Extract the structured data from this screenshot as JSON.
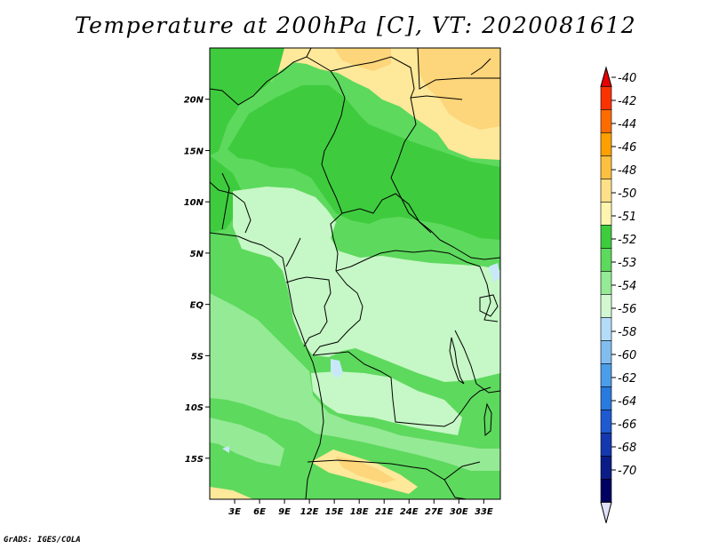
{
  "title": "Temperature at 200hPa [C], VT: 2020081612",
  "credit": "GrADS: IGES/COLA",
  "map": {
    "lon_range": [
      0,
      35
    ],
    "lat_range": [
      -19,
      25
    ],
    "x_ticks": [
      {
        "value": 3,
        "label": "3E"
      },
      {
        "value": 6,
        "label": "6E"
      },
      {
        "value": 9,
        "label": "9E"
      },
      {
        "value": 12,
        "label": "12E"
      },
      {
        "value": 15,
        "label": "15E"
      },
      {
        "value": 18,
        "label": "18E"
      },
      {
        "value": 21,
        "label": "21E"
      },
      {
        "value": 24,
        "label": "24E"
      },
      {
        "value": 27,
        "label": "27E"
      },
      {
        "value": 30,
        "label": "30E"
      },
      {
        "value": 33,
        "label": "33E"
      }
    ],
    "y_ticks": [
      {
        "value": 20,
        "label": "20N"
      },
      {
        "value": 15,
        "label": "15N"
      },
      {
        "value": 10,
        "label": "10N"
      },
      {
        "value": 5,
        "label": "5N"
      },
      {
        "value": 0,
        "label": "EQ"
      },
      {
        "value": -5,
        "label": "5S"
      },
      {
        "value": -10,
        "label": "10S"
      },
      {
        "value": -15,
        "label": "15S"
      }
    ],
    "colors": {
      "c50": "#fee89a",
      "c48": "#fdd57a",
      "c51": "#3ecc3e",
      "c52": "#5dd95d",
      "c53": "#95ea95",
      "c54": "#c6f7c6",
      "c56": "#c8e8fa",
      "border": "#000000"
    }
  },
  "legend": {
    "bins": [
      {
        "label": "-40",
        "color": "#e80000"
      },
      {
        "label": "-42",
        "color": "#fa3200"
      },
      {
        "label": "-44",
        "color": "#fe6c00"
      },
      {
        "label": "-46",
        "color": "#fea000"
      },
      {
        "label": "-48",
        "color": "#fec040"
      },
      {
        "label": "-50",
        "color": "#fee089"
      },
      {
        "label": "-51",
        "color": "#fff5b0"
      },
      {
        "label": "-52",
        "color": "#3ecc3e"
      },
      {
        "label": "-53",
        "color": "#5dd95d"
      },
      {
        "label": "-54",
        "color": "#95ea95"
      },
      {
        "label": "-56",
        "color": "#d2f8d2"
      },
      {
        "label": "-58",
        "color": "#b4dcf8"
      },
      {
        "label": "-60",
        "color": "#82bdf0"
      },
      {
        "label": "-62",
        "color": "#4c9de8"
      },
      {
        "label": "-64",
        "color": "#2a7ade"
      },
      {
        "label": "-66",
        "color": "#1e5ad0"
      },
      {
        "label": "-68",
        "color": "#1438b0"
      },
      {
        "label": "-70",
        "color": "#0a1c86"
      },
      {
        "label": "",
        "color": "#000060"
      },
      {
        "label": "",
        "color": "#e0e0f8"
      }
    ]
  }
}
